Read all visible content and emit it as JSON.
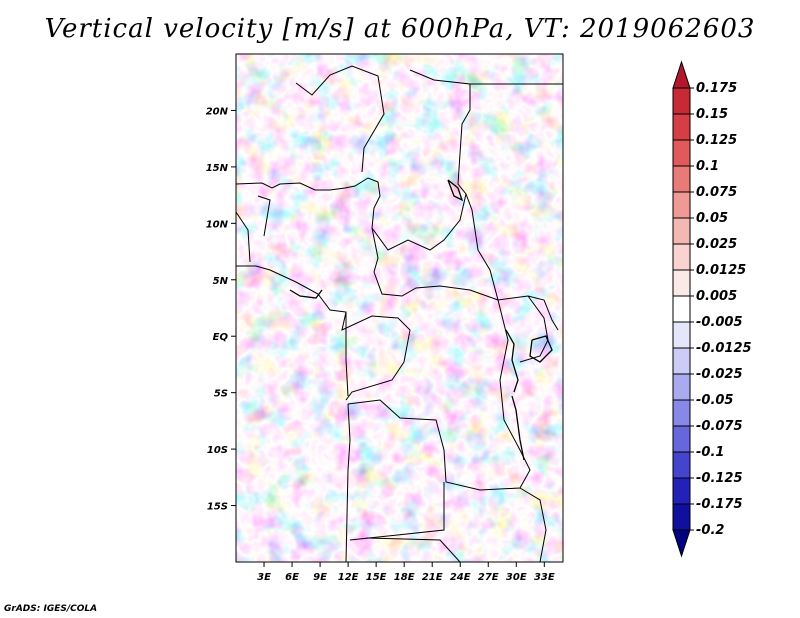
{
  "title": "Vertical velocity [m/s] at 600hPa, VT: 2019062603",
  "credit": "GrADS: IGES/COLA",
  "map": {
    "lon_range": [
      0,
      35
    ],
    "lat_range": [
      -20,
      25
    ],
    "lat_ticks": [
      {
        "label": "20N",
        "value": 20
      },
      {
        "label": "15N",
        "value": 15
      },
      {
        "label": "10N",
        "value": 10
      },
      {
        "label": "5N",
        "value": 5
      },
      {
        "label": "EQ",
        "value": 0
      },
      {
        "label": "5S",
        "value": -5
      },
      {
        "label": "10S",
        "value": -10
      },
      {
        "label": "15S",
        "value": -15
      }
    ],
    "lon_ticks": [
      {
        "label": "3E",
        "value": 3
      },
      {
        "label": "6E",
        "value": 6
      },
      {
        "label": "9E",
        "value": 9
      },
      {
        "label": "12E",
        "value": 12
      },
      {
        "label": "15E",
        "value": 15
      },
      {
        "label": "18E",
        "value": 18
      },
      {
        "label": "21E",
        "value": 21
      },
      {
        "label": "24E",
        "value": 24
      },
      {
        "label": "27E",
        "value": 27
      },
      {
        "label": "30E",
        "value": 30
      },
      {
        "label": "33E",
        "value": 33
      }
    ]
  },
  "colorbar": {
    "levels": [
      "0.175",
      "0.15",
      "0.125",
      "0.1",
      "0.075",
      "0.05",
      "0.025",
      "0.0125",
      "0.005",
      "-0.005",
      "-0.0125",
      "-0.025",
      "-0.05",
      "-0.075",
      "-0.1",
      "-0.125",
      "-0.175",
      "-0.2"
    ],
    "colors": [
      "#b2182b",
      "#c62a35",
      "#d53e45",
      "#e05a5a",
      "#e87a78",
      "#ef9a95",
      "#f4b8b2",
      "#f8d3cf",
      "#fbe9e7",
      "#ffffff",
      "#e6e6fa",
      "#ccccf5",
      "#aaaaf0",
      "#8888e8",
      "#6666dd",
      "#4444cc",
      "#2222b8",
      "#10109e",
      "#000080"
    ]
  }
}
